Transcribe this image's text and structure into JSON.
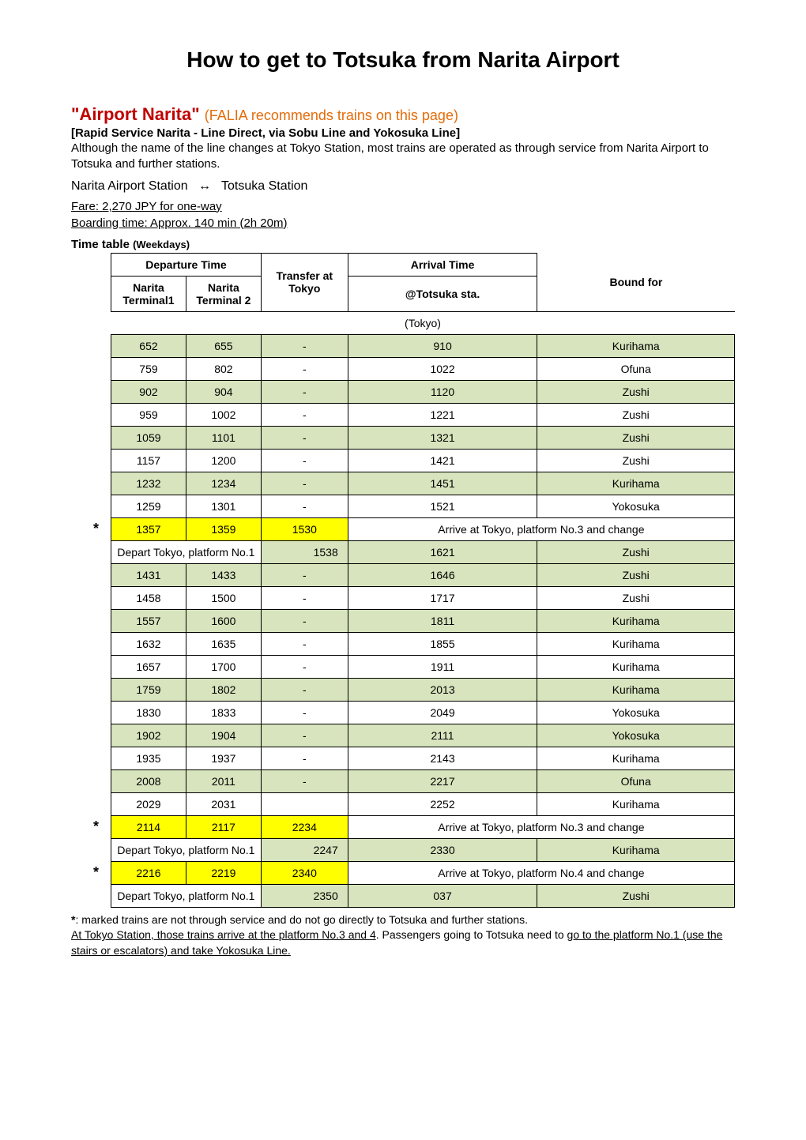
{
  "page_title": "How to get to Totsuka from Narita Airport",
  "line": {
    "name_quoted": "\"Airport Narita\"",
    "recommend": "(FALIA recommends trains on this page)",
    "subtitle": "[Rapid Service Narita - Line Direct, via Sobu Line and Yokosuka Line]",
    "desc": "Although the name of the line changes at Tokyo Station, most trains are operated as through service from Narita Airport to Totsuka and further stations.",
    "route_from": "Narita Airport Station",
    "route_arrow": "↔",
    "route_to": "Totsuka Station",
    "fare": "Fare: 2,270 JPY for one-way",
    "boarding": "Boarding time: Approx. 140 min (2h 20m)"
  },
  "table_title": "Time table",
  "table_title_small": "(Weekdays)",
  "headers": {
    "dep": "Departure Time",
    "t1": "Narita Terminal1",
    "t2": "Narita Terminal 2",
    "transfer": "Transfer at Tokyo",
    "arrival": "Arrival Time",
    "arrival_sub": "@Totsuka sta.",
    "bound": "Bound for",
    "tokyo_row": "(Tokyo)"
  },
  "rows": [
    {
      "star": "",
      "class": "green",
      "t1": "652",
      "t2": "655",
      "xfer": "-",
      "arr": "910",
      "bound": "Kurihama"
    },
    {
      "star": "",
      "class": "white",
      "t1": "759",
      "t2": "802",
      "xfer": "-",
      "arr": "1022",
      "bound": "Ofuna"
    },
    {
      "star": "",
      "class": "green",
      "t1": "902",
      "t2": "904",
      "xfer": "-",
      "arr": "1120",
      "bound": "Zushi"
    },
    {
      "star": "",
      "class": "white",
      "t1": "959",
      "t2": "1002",
      "xfer": "-",
      "arr": "1221",
      "bound": "Zushi"
    },
    {
      "star": "",
      "class": "green",
      "t1": "1059",
      "t2": "1101",
      "xfer": "-",
      "arr": "1321",
      "bound": "Zushi"
    },
    {
      "star": "",
      "class": "white",
      "t1": "1157",
      "t2": "1200",
      "xfer": "-",
      "arr": "1421",
      "bound": "Zushi"
    },
    {
      "star": "",
      "class": "green",
      "t1": "1232",
      "t2": "1234",
      "xfer": "-",
      "arr": "1451",
      "bound": "Kurihama"
    },
    {
      "star": "",
      "class": "white",
      "t1": "1259",
      "t2": "1301",
      "xfer": "-",
      "arr": "1521",
      "bound": "Yokosuka"
    },
    {
      "star": "*",
      "class": "yellow",
      "t1": "1357",
      "t2": "1359",
      "xfer": "1530",
      "note": "Arrive at Tokyo, platform No.3 and change"
    },
    {
      "star": "",
      "class": "green",
      "depart_note": "Depart Tokyo, platform No.1",
      "xfer_r": "1538",
      "arr": "1621",
      "bound": "Zushi"
    },
    {
      "star": "",
      "class": "green",
      "t1": "1431",
      "t2": "1433",
      "xfer": "-",
      "arr": "1646",
      "bound": "Zushi"
    },
    {
      "star": "",
      "class": "white",
      "t1": "1458",
      "t2": "1500",
      "xfer": "-",
      "arr": "1717",
      "bound": "Zushi"
    },
    {
      "star": "",
      "class": "green",
      "t1": "1557",
      "t2": "1600",
      "xfer": "-",
      "arr": "1811",
      "bound": "Kurihama"
    },
    {
      "star": "",
      "class": "white",
      "t1": "1632",
      "t2": "1635",
      "xfer": "-",
      "arr": "1855",
      "bound": "Kurihama"
    },
    {
      "star": "",
      "class": "white",
      "t1": "1657",
      "t2": "1700",
      "xfer": "-",
      "arr": "1911",
      "bound": "Kurihama"
    },
    {
      "star": "",
      "class": "green",
      "t1": "1759",
      "t2": "1802",
      "xfer": "-",
      "arr": "2013",
      "bound": "Kurihama"
    },
    {
      "star": "",
      "class": "white",
      "t1": "1830",
      "t2": "1833",
      "xfer": "-",
      "arr": "2049",
      "bound": "Yokosuka"
    },
    {
      "star": "",
      "class": "green",
      "t1": "1902",
      "t2": "1904",
      "xfer": "-",
      "arr": "2111",
      "bound": "Yokosuka"
    },
    {
      "star": "",
      "class": "white",
      "t1": "1935",
      "t2": "1937",
      "xfer": "-",
      "arr": "2143",
      "bound": "Kurihama"
    },
    {
      "star": "",
      "class": "green",
      "t1": "2008",
      "t2": "2011",
      "xfer": "-",
      "arr": "2217",
      "bound": "Ofuna"
    },
    {
      "star": "",
      "class": "white",
      "t1": "2029",
      "t2": "2031",
      "xfer": "",
      "arr": "2252",
      "bound": "Kurihama"
    },
    {
      "star": "*",
      "class": "yellow",
      "t1": "2114",
      "t2": "2117",
      "xfer": "2234",
      "note": "Arrive at Tokyo, platform No.3 and change"
    },
    {
      "star": "",
      "class": "green",
      "depart_note": "Depart Tokyo, platform No.1",
      "xfer_r": "2247",
      "arr": "2330",
      "bound": "Kurihama"
    },
    {
      "star": "*",
      "class": "yellow",
      "t1": "2216",
      "t2": "2219",
      "xfer": "2340",
      "note": "Arrive at Tokyo, platform No.4 and change"
    },
    {
      "star": "",
      "class": "green",
      "depart_note": "Depart Tokyo, platform No.1",
      "xfer_r": "2350",
      "arr": "037",
      "bound": "Zushi"
    }
  ],
  "footnote": {
    "star": "*",
    "line1": ": marked trains are not through service and do not go directly to Totsuka and further stations.",
    "line2a": "At Tokyo Station, those trains arrive at the platform No.3 and 4",
    "line2b": ". Passengers going to Totsuka need to ",
    "line2c": "go to the platform No.1 (use the stairs or escalators) and take Yokosuka Line."
  },
  "colors": {
    "green": "#d7e4bd",
    "yellow": "#ffff00",
    "red": "#c00000",
    "orange": "#e46c0a"
  }
}
